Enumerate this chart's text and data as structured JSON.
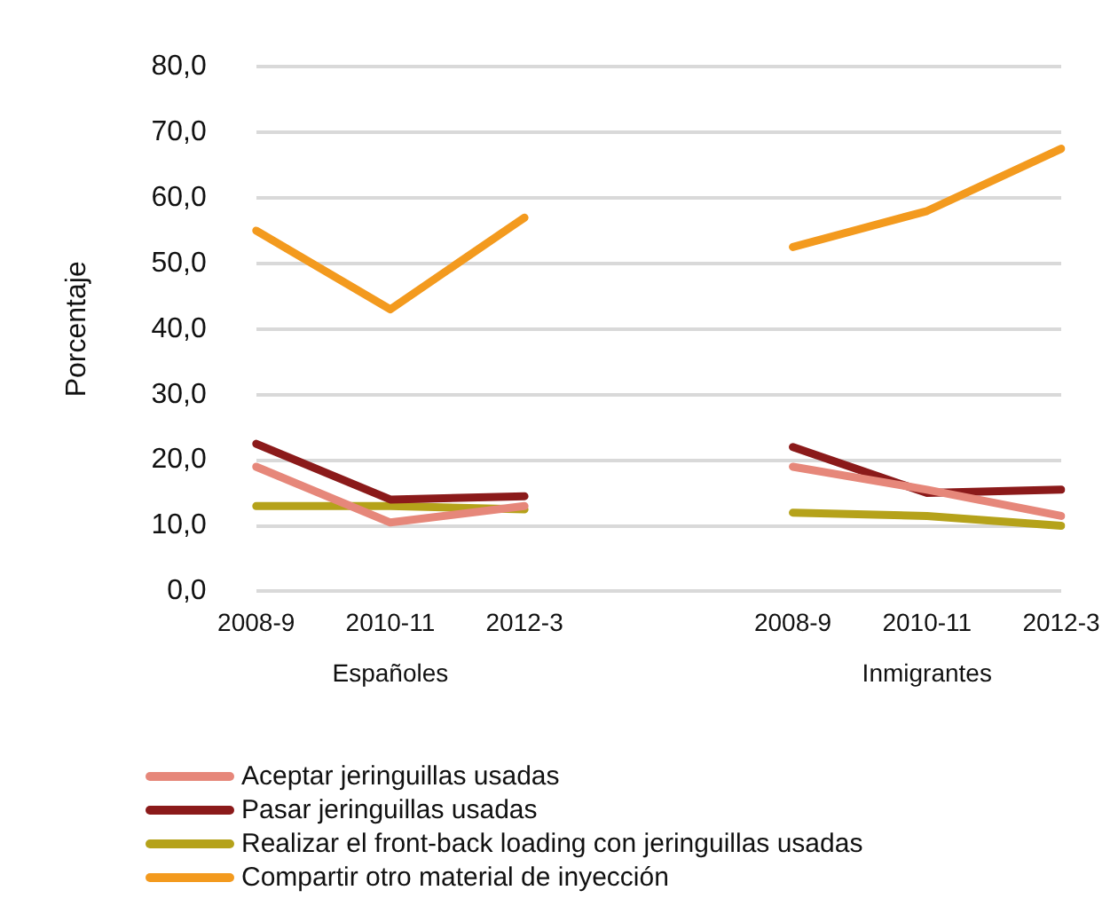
{
  "chart_data": {
    "type": "line",
    "ylabel": "Porcentaje",
    "categories": [
      "2008-9",
      "2010-11",
      "2012-3",
      null,
      "2008-9",
      "2010-11",
      "2012-3"
    ],
    "series": [
      {
        "name": "Aceptar jeringuillas usadas",
        "color": "#e6877a",
        "values": [
          19,
          10.5,
          13,
          null,
          19,
          15.5,
          11.5
        ]
      },
      {
        "name": "Pasar jeringuillas usadas",
        "color": "#8b1a1a",
        "values": [
          22.5,
          14,
          14.5,
          null,
          22,
          15,
          15.5
        ]
      },
      {
        "name": "Realizar el front-back loading con jeringuillas usadas",
        "color": "#b5a21a",
        "values": [
          13,
          13,
          12.5,
          null,
          12,
          11.5,
          10
        ]
      },
      {
        "name": "Compartir otro material de inyección",
        "color": "#f39a1e",
        "values": [
          55,
          43,
          57,
          null,
          52.5,
          58,
          67.5
        ]
      }
    ],
    "ylim": [
      0,
      80
    ],
    "yticks": [
      {
        "value": 0,
        "label": "0,0"
      },
      {
        "value": 10,
        "label": "10,0"
      },
      {
        "value": 20,
        "label": "20,0"
      },
      {
        "value": 30,
        "label": "30,0"
      },
      {
        "value": 40,
        "label": "40,0"
      },
      {
        "value": 50,
        "label": "50,0"
      },
      {
        "value": 60,
        "label": "60,0"
      },
      {
        "value": 70,
        "label": "70,0"
      },
      {
        "value": 80,
        "label": "80,0"
      }
    ],
    "annotations": [
      "Españoles",
      "Inmigrantes"
    ],
    "grid": "y",
    "legend": "bottom left",
    "marker": "none",
    "line_style": "solid"
  }
}
